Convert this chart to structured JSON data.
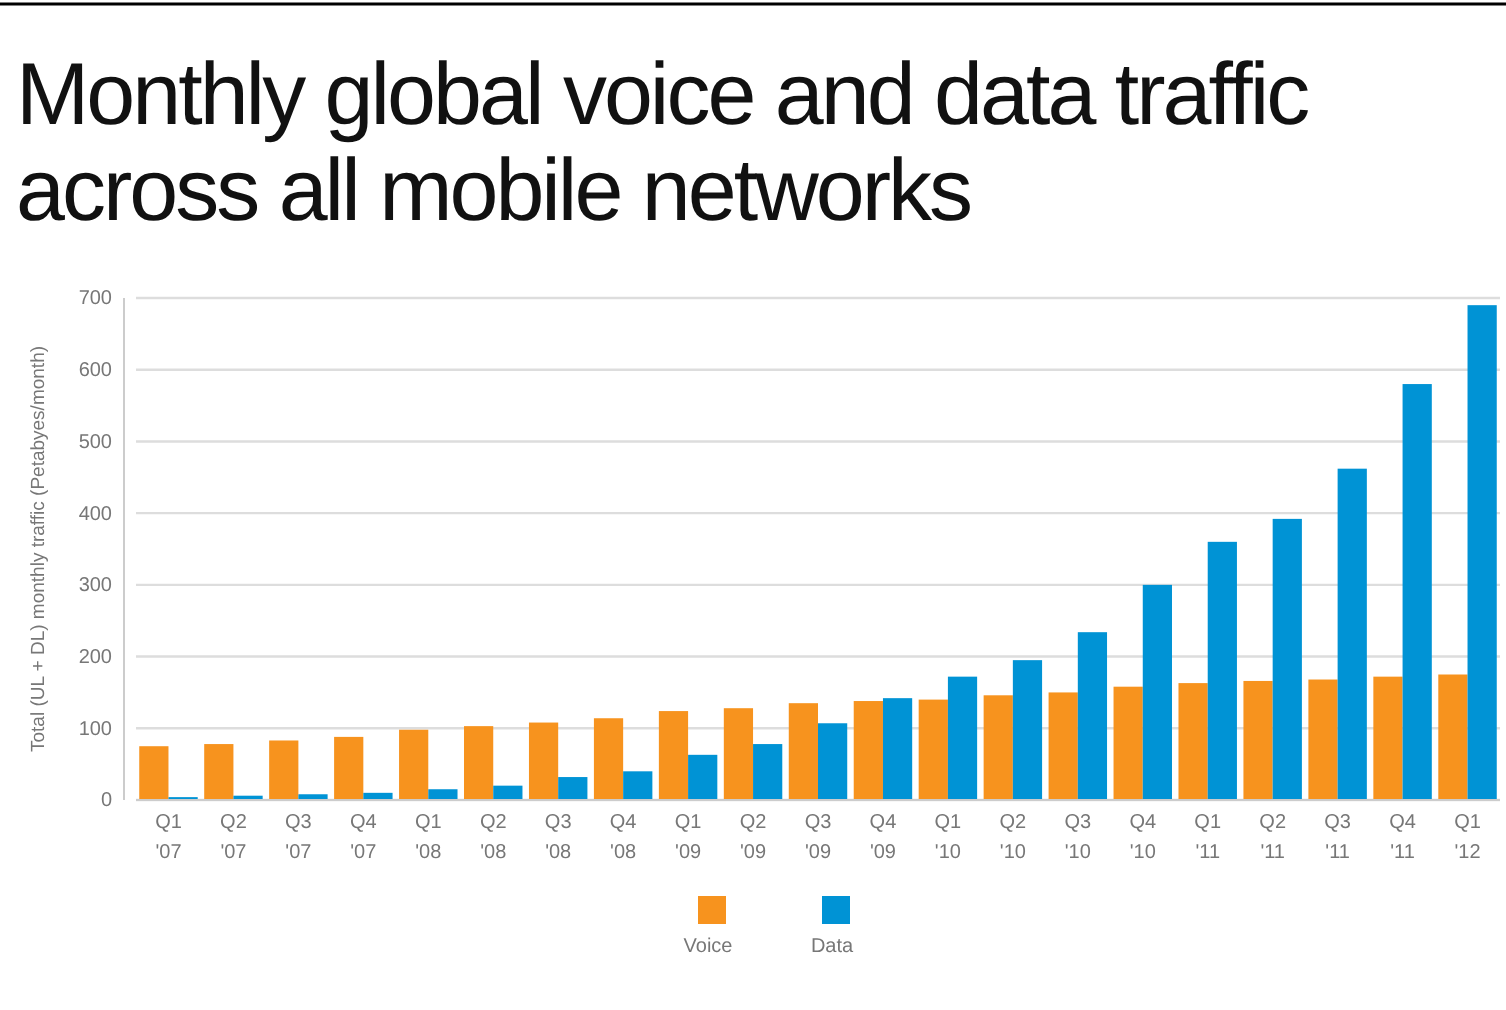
{
  "chart_data": {
    "type": "bar",
    "title": "Monthly global voice and data traffic across all mobile networks",
    "ylabel": "Total (UL + DL) monthly traffic (Petabyes/month)",
    "categories": [
      "Q1 '07",
      "Q2 '07",
      "Q3 '07",
      "Q4 '07",
      "Q1 '08",
      "Q2 '08",
      "Q3 '08",
      "Q4 '08",
      "Q1 '09",
      "Q2 '09",
      "Q3 '09",
      "Q4 '09",
      "Q1 '10",
      "Q2 '10",
      "Q3 '10",
      "Q4 '10",
      "Q1 '11",
      "Q2 '11",
      "Q3 '11",
      "Q4 '11",
      "Q1 '12"
    ],
    "series": [
      {
        "name": "Voice",
        "color": "#f7931e",
        "values": [
          75,
          78,
          83,
          88,
          98,
          103,
          108,
          114,
          124,
          128,
          135,
          138,
          140,
          146,
          150,
          158,
          163,
          166,
          168,
          172,
          175
        ]
      },
      {
        "name": "Data",
        "color": "#0093d5",
        "values": [
          4,
          6,
          8,
          10,
          15,
          20,
          32,
          40,
          63,
          78,
          107,
          142,
          172,
          195,
          234,
          300,
          360,
          392,
          462,
          580,
          690
        ]
      }
    ],
    "ylim": [
      0,
      700
    ],
    "yticks": [
      0,
      100,
      200,
      300,
      400,
      500,
      600,
      700
    ],
    "grid": "y",
    "legend": "bottom"
  }
}
